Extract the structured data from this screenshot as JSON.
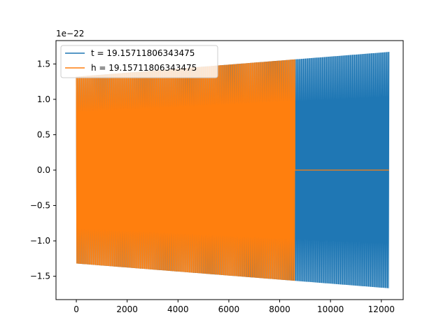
{
  "chart_data": {
    "type": "line",
    "offset_text": "1e−22",
    "scale": 1e-22,
    "xlim": [
      -800,
      12860
    ],
    "ylim": [
      -1.83,
      1.83
    ],
    "xticks": [
      0,
      2000,
      4000,
      6000,
      8000,
      10000,
      12000
    ],
    "xtick_labels": [
      "0",
      "2000",
      "4000",
      "6000",
      "8000",
      "10000",
      "12000"
    ],
    "yticks": [
      -1.5,
      -1.0,
      -0.5,
      0.0,
      0.5,
      1.0,
      1.5
    ],
    "ytick_labels": [
      "−1.5",
      "−1.0",
      "−0.5",
      "0.0",
      "0.5",
      "1.0",
      "1.5"
    ],
    "legend_position": "upper-left",
    "series": [
      {
        "name": "t = 19.15711806343475",
        "color": "#1f77b4",
        "x_start": 0,
        "x_end": 12300,
        "amplitude_start": 1.32,
        "amplitude_end": 1.67,
        "cycles": 300
      },
      {
        "name": "h = 19.15711806343475",
        "color": "#ff7f0e",
        "x_start": 0,
        "x_end": 8600,
        "amplitude_start": 1.32,
        "amplitude_end": 1.67,
        "cycles": 210,
        "zero_from": 8600,
        "zero_to": 12300
      }
    ]
  }
}
